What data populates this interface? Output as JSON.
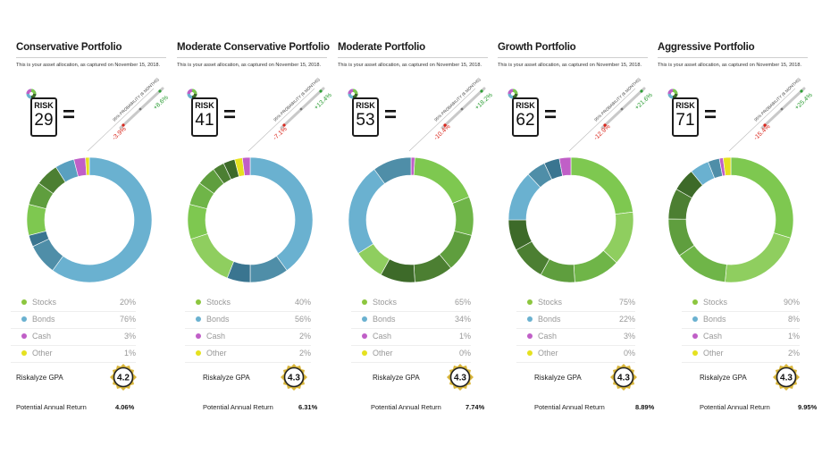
{
  "colors": {
    "stocks_greens": [
      "#7ec850",
      "#6fb548",
      "#5f9e3e",
      "#4c7f32",
      "#3d6a29",
      "#8fce5f",
      "#a7d979"
    ],
    "bonds_blues": [
      "#6ab1d0",
      "#4f8ea8",
      "#3a7590",
      "#5aa0c0"
    ],
    "cash": "#c05fc7",
    "other": "#e5e11f",
    "legend_stocks": "#8cc63f",
    "legend_bonds": "#6ab1d0",
    "legend_cash": "#c05fc7",
    "legend_other": "#e5e11f",
    "down": "#d9261c",
    "up": "#2e9e36"
  },
  "chart_data": [
    {
      "type": "pie",
      "title": "Conservative Portfolio",
      "caption": "This is your asset allocation, as captured on November 15, 2018.",
      "risk_label": "RISK",
      "risk": "29",
      "probability_label": "95% PROBABILITY (6 MONTHS)",
      "prob_low": "-3.9%",
      "prob_high": "+8.6%",
      "legend": [
        {
          "name": "Stocks",
          "value": "20%"
        },
        {
          "name": "Bonds",
          "value": "76%"
        },
        {
          "name": "Cash",
          "value": "3%"
        },
        {
          "name": "Other",
          "value": "1%"
        }
      ],
      "slices": [
        {
          "group": "bonds",
          "shade": 0,
          "value": 60
        },
        {
          "group": "bonds",
          "shade": 1,
          "value": 8
        },
        {
          "group": "bonds",
          "shade": 2,
          "value": 3
        },
        {
          "group": "stocks",
          "shade": 0,
          "value": 8
        },
        {
          "group": "stocks",
          "shade": 2,
          "value": 6
        },
        {
          "group": "stocks",
          "shade": 3,
          "value": 6
        },
        {
          "group": "bonds",
          "shade": 3,
          "value": 5
        },
        {
          "group": "cash",
          "shade": 0,
          "value": 3
        },
        {
          "group": "other",
          "shade": 0,
          "value": 1
        }
      ],
      "gpa_label": "Riskalyze GPA",
      "gpa": "4.2",
      "return_label": "Potential Annual Return",
      "return_value": "4.06%"
    },
    {
      "type": "pie",
      "title": "Moderate Conservative Portfolio",
      "caption": "This is your asset allocation, as captured on November 15, 2018.",
      "risk_label": "RISK",
      "risk": "41",
      "probability_label": "95% PROBABILITY (6 MONTHS)",
      "prob_low": "-7.1%",
      "prob_high": "+13.4%",
      "legend": [
        {
          "name": "Stocks",
          "value": "40%"
        },
        {
          "name": "Bonds",
          "value": "56%"
        },
        {
          "name": "Cash",
          "value": "2%"
        },
        {
          "name": "Other",
          "value": "2%"
        }
      ],
      "slices": [
        {
          "group": "bonds",
          "shade": 0,
          "value": 40
        },
        {
          "group": "bonds",
          "shade": 1,
          "value": 10
        },
        {
          "group": "bonds",
          "shade": 2,
          "value": 6
        },
        {
          "group": "stocks",
          "shade": 5,
          "value": 14
        },
        {
          "group": "stocks",
          "shade": 0,
          "value": 9
        },
        {
          "group": "stocks",
          "shade": 1,
          "value": 6
        },
        {
          "group": "stocks",
          "shade": 2,
          "value": 5
        },
        {
          "group": "stocks",
          "shade": 3,
          "value": 3
        },
        {
          "group": "stocks",
          "shade": 4,
          "value": 3
        },
        {
          "group": "other",
          "shade": 0,
          "value": 2
        },
        {
          "group": "cash",
          "shade": 0,
          "value": 2
        }
      ],
      "gpa_label": "Riskalyze GPA",
      "gpa": "4.3",
      "return_label": "Potential Annual Return",
      "return_value": "6.31%"
    },
    {
      "type": "pie",
      "title": "Moderate Portfolio",
      "caption": "This is your asset allocation, as captured on November 15, 2018.",
      "risk_label": "RISK",
      "risk": "53",
      "probability_label": "95% PROBABILITY (6 MONTHS)",
      "prob_low": "-10.4%",
      "prob_high": "+18.2%",
      "legend": [
        {
          "name": "Stocks",
          "value": "65%"
        },
        {
          "name": "Bonds",
          "value": "34%"
        },
        {
          "name": "Cash",
          "value": "1%"
        },
        {
          "name": "Other",
          "value": "0%"
        }
      ],
      "slices": [
        {
          "group": "cash",
          "shade": 0,
          "value": 1
        },
        {
          "group": "stocks",
          "shade": 0,
          "value": 18
        },
        {
          "group": "stocks",
          "shade": 1,
          "value": 10
        },
        {
          "group": "stocks",
          "shade": 2,
          "value": 10
        },
        {
          "group": "stocks",
          "shade": 3,
          "value": 10
        },
        {
          "group": "stocks",
          "shade": 4,
          "value": 9
        },
        {
          "group": "stocks",
          "shade": 5,
          "value": 8
        },
        {
          "group": "bonds",
          "shade": 0,
          "value": 24
        },
        {
          "group": "bonds",
          "shade": 1,
          "value": 10
        }
      ],
      "gpa_label": "Riskalyze GPA",
      "gpa": "4.3",
      "return_label": "Potential Annual Return",
      "return_value": "7.74%"
    },
    {
      "type": "pie",
      "title": "Growth Portfolio",
      "caption": "This is your asset allocation, as captured on November 15, 2018.",
      "risk_label": "RISK",
      "risk": "62",
      "probability_label": "95% PROBABILITY (6 MONTHS)",
      "prob_low": "-12.9%",
      "prob_high": "+21.6%",
      "legend": [
        {
          "name": "Stocks",
          "value": "75%"
        },
        {
          "name": "Bonds",
          "value": "22%"
        },
        {
          "name": "Cash",
          "value": "3%"
        },
        {
          "name": "Other",
          "value": "0%"
        }
      ],
      "slices": [
        {
          "group": "stocks",
          "shade": 0,
          "value": 23
        },
        {
          "group": "stocks",
          "shade": 5,
          "value": 14
        },
        {
          "group": "stocks",
          "shade": 1,
          "value": 12
        },
        {
          "group": "stocks",
          "shade": 2,
          "value": 9
        },
        {
          "group": "stocks",
          "shade": 3,
          "value": 9
        },
        {
          "group": "stocks",
          "shade": 4,
          "value": 8
        },
        {
          "group": "bonds",
          "shade": 0,
          "value": 13
        },
        {
          "group": "bonds",
          "shade": 1,
          "value": 5
        },
        {
          "group": "bonds",
          "shade": 2,
          "value": 4
        },
        {
          "group": "cash",
          "shade": 0,
          "value": 3
        }
      ],
      "gpa_label": "Riskalyze GPA",
      "gpa": "4.3",
      "return_label": "Potential Annual Return",
      "return_value": "8.89%"
    },
    {
      "type": "pie",
      "title": "Aggressive Portfolio",
      "caption": "This is your asset allocation, as captured on November 15, 2018.",
      "risk_label": "RISK",
      "risk": "71",
      "probability_label": "95% PROBABILITY (6 MONTHS)",
      "prob_low": "-15.4%",
      "prob_high": "+25.4%",
      "legend": [
        {
          "name": "Stocks",
          "value": "90%"
        },
        {
          "name": "Bonds",
          "value": "8%"
        },
        {
          "name": "Cash",
          "value": "1%"
        },
        {
          "name": "Other",
          "value": "2%"
        }
      ],
      "slices": [
        {
          "group": "stocks",
          "shade": 0,
          "value": 30
        },
        {
          "group": "stocks",
          "shade": 5,
          "value": 22
        },
        {
          "group": "stocks",
          "shade": 1,
          "value": 14
        },
        {
          "group": "stocks",
          "shade": 2,
          "value": 10
        },
        {
          "group": "stocks",
          "shade": 3,
          "value": 8
        },
        {
          "group": "stocks",
          "shade": 4,
          "value": 6
        },
        {
          "group": "bonds",
          "shade": 0,
          "value": 5
        },
        {
          "group": "bonds",
          "shade": 1,
          "value": 3
        },
        {
          "group": "cash",
          "shade": 0,
          "value": 1
        },
        {
          "group": "other",
          "shade": 0,
          "value": 2
        }
      ],
      "gpa_label": "Riskalyze GPA",
      "gpa": "4.3",
      "return_label": "Potential Annual Return",
      "return_value": "9.95%"
    }
  ]
}
